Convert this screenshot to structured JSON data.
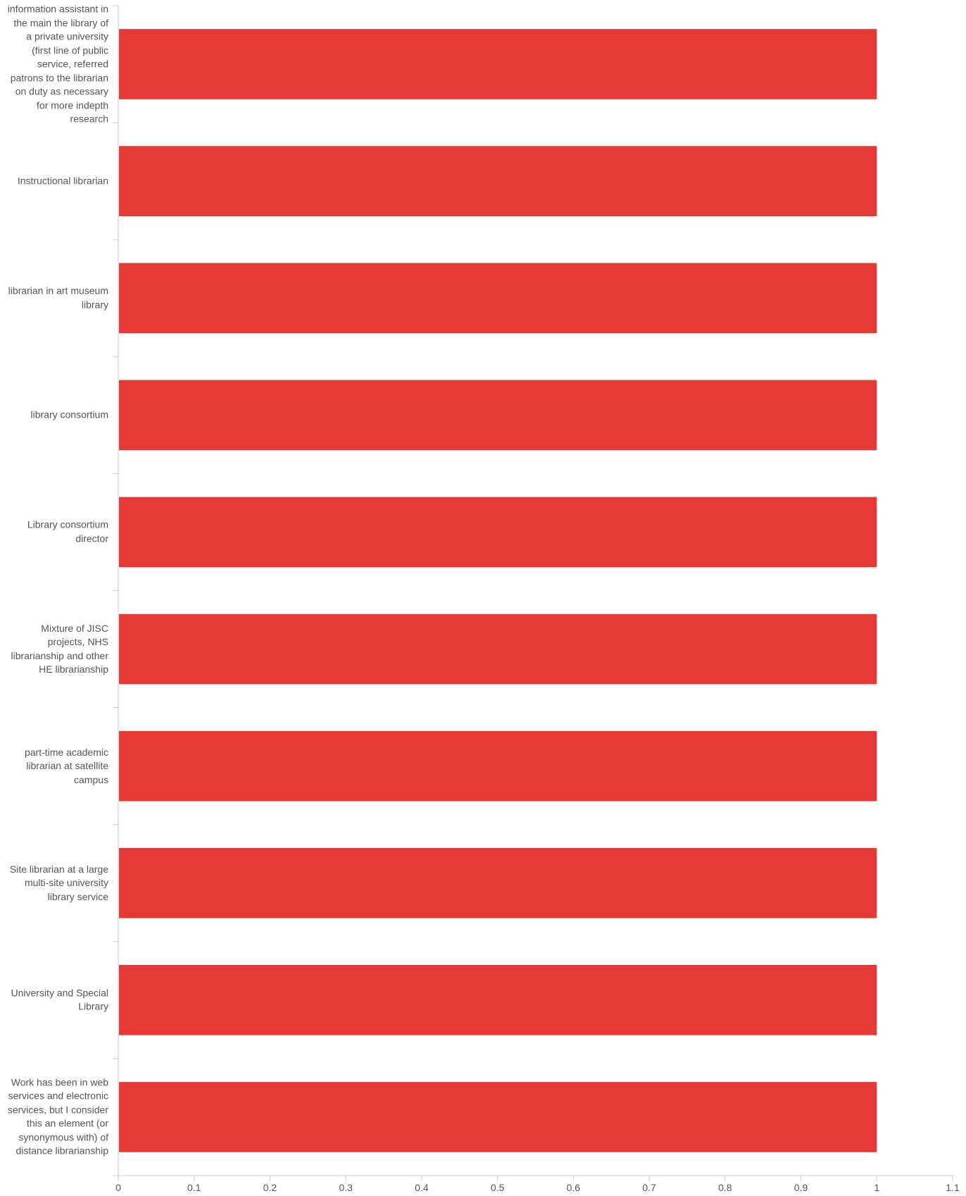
{
  "chart_data": {
    "type": "bar",
    "orientation": "horizontal",
    "title": "",
    "xlabel": "",
    "ylabel": "",
    "categories": [
      "information assistant in the main the library of a private university (first line of public service, referred patrons to the librarian on duty as necessary for more indepth research",
      "Instructional librarian",
      "librarian in art museum library",
      "library consortium",
      "Library consortium director",
      "Mixture of JISC projects, NHS librarianship and other HE librarianship",
      "part-time academic librarian at satellite campus",
      "Site librarian at a large multi-site university library service",
      "University and Special Library",
      "Work has been in web services and electronic services, but I consider this an element (or synonymous with) of distance librarianship"
    ],
    "values": [
      1,
      1,
      1,
      1,
      1,
      1,
      1,
      1,
      1,
      1
    ],
    "xlim": [
      0,
      1.1
    ],
    "x_ticks": [
      "0",
      "0.1",
      "0.2",
      "0.3",
      "0.4",
      "0.5",
      "0.6",
      "0.7",
      "0.8",
      "0.9",
      "1",
      "1.1"
    ],
    "grid": false,
    "legend": "none",
    "bar_color": "#e53935",
    "axis_color": "#cccccc",
    "label_color": "#555555"
  }
}
